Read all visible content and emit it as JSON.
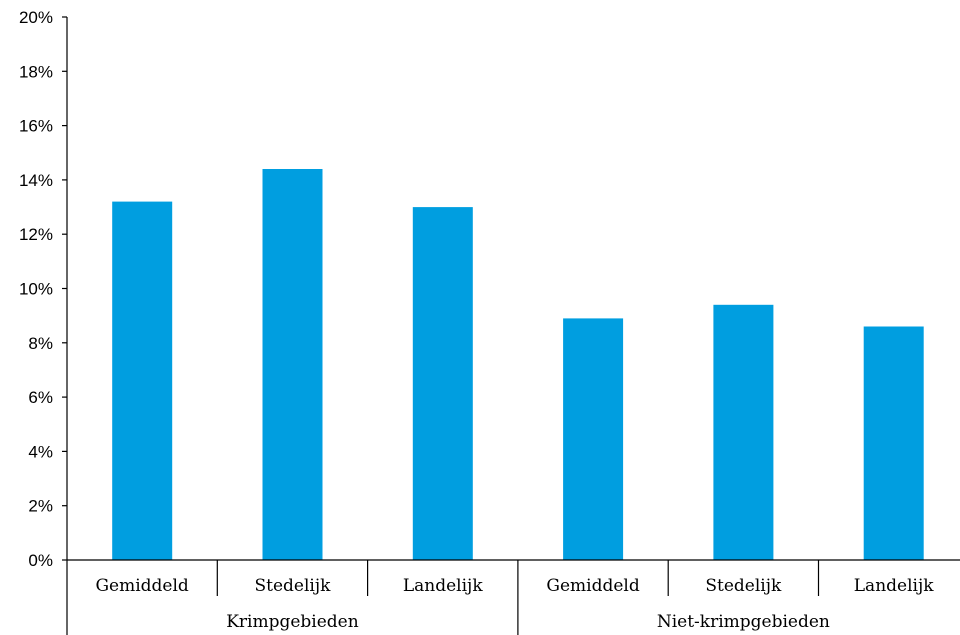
{
  "chart_data": {
    "type": "bar",
    "categories": [
      "Gemiddeld",
      "Stedelijk",
      "Landelijk",
      "Gemiddeld",
      "Stedelijk",
      "Landelijk"
    ],
    "groups": [
      {
        "label": "Krimpgebieden",
        "categories": [
          "Gemiddeld",
          "Stedelijk",
          "Landelijk"
        ]
      },
      {
        "label": "Niet-krimpgebieden",
        "categories": [
          "Gemiddeld",
          "Stedelijk",
          "Landelijk"
        ]
      }
    ],
    "values": [
      13.2,
      14.4,
      13.0,
      8.9,
      9.4,
      8.6
    ],
    "ylim": [
      0,
      20
    ],
    "yticks": [
      "0%",
      "2%",
      "4%",
      "6%",
      "8%",
      "10%",
      "12%",
      "14%",
      "16%",
      "18%",
      "20%"
    ],
    "title": "",
    "xlabel": "",
    "ylabel": "",
    "grid": false,
    "bar_color": "#009ee0"
  }
}
